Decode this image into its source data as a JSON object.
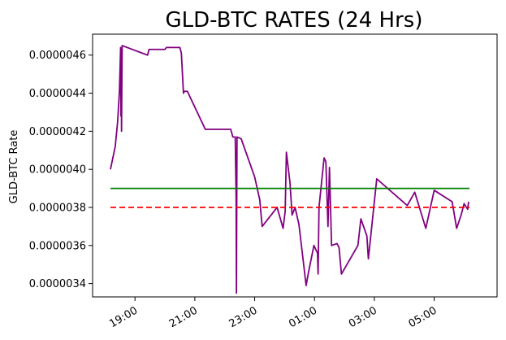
{
  "chart_data": {
    "type": "line",
    "title": "GLD-BTC RATES (24 Hrs)",
    "xlabel": "",
    "ylabel": "GLD-BTC Rate",
    "x_unit": "hours after 19:00 (time of day; wraps past midnight)",
    "xlim": [
      -0.82,
      11.45
    ],
    "ylim": [
      3.33e-06,
      4.71e-06
    ],
    "x_ticks": [
      {
        "x": 0,
        "label": "19:00"
      },
      {
        "x": 2,
        "label": "21:00"
      },
      {
        "x": 4,
        "label": "23:00"
      },
      {
        "x": 6,
        "label": "01:00"
      },
      {
        "x": 8,
        "label": "03:00"
      },
      {
        "x": 10,
        "label": "05:00"
      }
    ],
    "y_ticks": [
      {
        "y": 3.4e-06,
        "label": "0.0000034"
      },
      {
        "y": 3.6e-06,
        "label": "0.0000036"
      },
      {
        "y": 3.8e-06,
        "label": "0.0000038"
      },
      {
        "y": 4e-06,
        "label": "0.0000040"
      },
      {
        "y": 4.2e-06,
        "label": "0.0000042"
      },
      {
        "y": 4.4e-06,
        "label": "0.0000044"
      },
      {
        "y": 4.6e-06,
        "label": "0.0000046"
      }
    ],
    "grid": false,
    "legend": "none",
    "series": [
      {
        "style": "line",
        "color": "#800080",
        "points": [
          [
            -0.82,
            4e-06
          ],
          [
            -0.66,
            4.12e-06
          ],
          [
            -0.58,
            4.25e-06
          ],
          [
            -0.52,
            4.41e-06
          ],
          [
            -0.48,
            4.64e-06
          ],
          [
            -0.47,
            4.28e-06
          ],
          [
            -0.46,
            4.61e-06
          ],
          [
            -0.45,
            4.2e-06
          ],
          [
            -0.43,
            4.65e-06
          ],
          [
            0.42,
            4.6e-06
          ],
          [
            0.47,
            4.63e-06
          ],
          [
            1.0,
            4.63e-06
          ],
          [
            1.05,
            4.64e-06
          ],
          [
            1.5,
            4.64e-06
          ],
          [
            1.55,
            4.61e-06
          ],
          [
            1.62,
            4.4e-06
          ],
          [
            1.65,
            4.41e-06
          ],
          [
            1.75,
            4.41e-06
          ],
          [
            2.35,
            4.21e-06
          ],
          [
            3.2,
            4.21e-06
          ],
          [
            3.27,
            4.17e-06
          ],
          [
            3.35,
            4.17e-06
          ],
          [
            3.38,
            3.85e-06
          ],
          [
            3.39,
            3.35e-06
          ],
          [
            3.41,
            4.17e-06
          ],
          [
            3.55,
            4.16e-06
          ],
          [
            4.0,
            3.96e-06
          ],
          [
            4.17,
            3.84e-06
          ],
          [
            4.25,
            3.7e-06
          ],
          [
            4.75,
            3.8e-06
          ],
          [
            4.95,
            3.69e-06
          ],
          [
            5.02,
            3.78e-06
          ],
          [
            5.06,
            4.09e-06
          ],
          [
            5.18,
            3.93e-06
          ],
          [
            5.25,
            3.76e-06
          ],
          [
            5.35,
            3.8e-06
          ],
          [
            5.48,
            3.71e-06
          ],
          [
            5.72,
            3.39e-06
          ],
          [
            5.8,
            3.46e-06
          ],
          [
            5.98,
            3.6e-06
          ],
          [
            6.1,
            3.56e-06
          ],
          [
            6.12,
            3.45e-06
          ],
          [
            6.15,
            3.8e-06
          ],
          [
            6.32,
            4.06e-06
          ],
          [
            6.38,
            4.04e-06
          ],
          [
            6.45,
            3.7e-06
          ],
          [
            6.5,
            4.01e-06
          ],
          [
            6.57,
            3.6e-06
          ],
          [
            6.75,
            3.61e-06
          ],
          [
            6.82,
            3.59e-06
          ],
          [
            6.9,
            3.45e-06
          ],
          [
            7.45,
            3.6e-06
          ],
          [
            7.55,
            3.74e-06
          ],
          [
            7.75,
            3.65e-06
          ],
          [
            7.8,
            3.53e-06
          ],
          [
            8.08,
            3.95e-06
          ],
          [
            9.1,
            3.81e-06
          ],
          [
            9.35,
            3.88e-06
          ],
          [
            9.72,
            3.69e-06
          ],
          [
            10.0,
            3.89e-06
          ],
          [
            10.6,
            3.83e-06
          ],
          [
            10.75,
            3.69e-06
          ],
          [
            10.9,
            3.76e-06
          ],
          [
            11.0,
            3.82e-06
          ],
          [
            11.12,
            3.79e-06
          ],
          [
            11.15,
            3.83e-06
          ]
        ]
      },
      {
        "style": "line",
        "color": "#008000",
        "points": [
          [
            -0.82,
            3.9e-06
          ],
          [
            11.18,
            3.9e-06
          ]
        ]
      },
      {
        "style": "dashed",
        "color": "#ff0000",
        "points": [
          [
            -0.82,
            3.8e-06
          ],
          [
            11.18,
            3.8e-06
          ]
        ]
      }
    ]
  }
}
